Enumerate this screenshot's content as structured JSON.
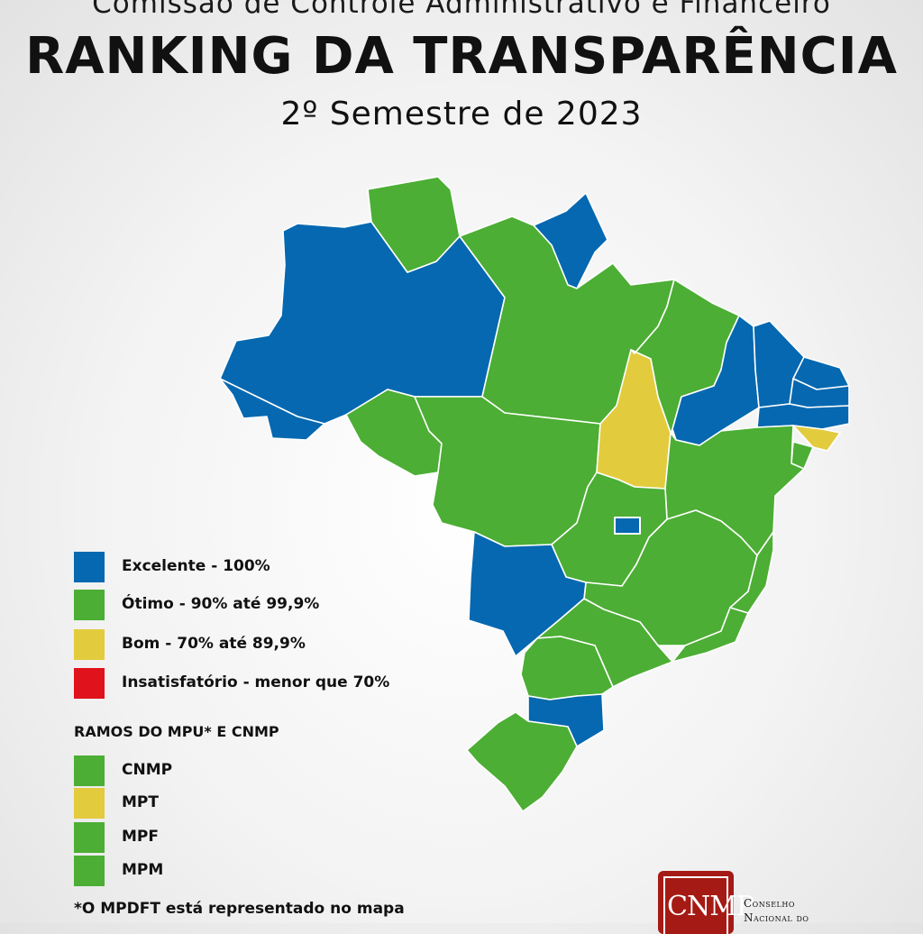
{
  "header": {
    "subtitle": "Comissão de Controle Administrativo e Financeiro",
    "title": "RANKING  DA TRANSPARÊNCIA",
    "semester": "2º Semestre de 2023"
  },
  "colors": {
    "excelente": "#0568b0",
    "otimo": "#4cae34",
    "bom": "#e3cb3e",
    "insatisfatorio": "#e0121b"
  },
  "map": {
    "states": [
      {
        "abbr": "AM",
        "category": "excelente"
      },
      {
        "abbr": "AC",
        "category": "excelente"
      },
      {
        "abbr": "RR",
        "category": "otimo"
      },
      {
        "abbr": "AP",
        "category": "excelente"
      },
      {
        "abbr": "PA",
        "category": "otimo"
      },
      {
        "abbr": "RO",
        "category": "otimo"
      },
      {
        "abbr": "MT",
        "category": "otimo"
      },
      {
        "abbr": "TO",
        "category": "bom"
      },
      {
        "abbr": "MA",
        "category": "otimo"
      },
      {
        "abbr": "PI",
        "category": "excelente"
      },
      {
        "abbr": "CE",
        "category": "excelente"
      },
      {
        "abbr": "RN",
        "category": "excelente"
      },
      {
        "abbr": "PB",
        "category": "excelente"
      },
      {
        "abbr": "PE",
        "category": "excelente"
      },
      {
        "abbr": "AL",
        "category": "bom"
      },
      {
        "abbr": "SE",
        "category": "otimo"
      },
      {
        "abbr": "BA",
        "category": "otimo"
      },
      {
        "abbr": "GO",
        "category": "otimo"
      },
      {
        "abbr": "DF",
        "category": "excelente"
      },
      {
        "abbr": "MG",
        "category": "otimo"
      },
      {
        "abbr": "ES",
        "category": "otimo"
      },
      {
        "abbr": "RJ",
        "category": "otimo"
      },
      {
        "abbr": "MS",
        "category": "excelente"
      },
      {
        "abbr": "SP",
        "category": "otimo"
      },
      {
        "abbr": "PR",
        "category": "otimo"
      },
      {
        "abbr": "SC",
        "category": "excelente"
      },
      {
        "abbr": "RS",
        "category": "otimo"
      }
    ]
  },
  "legend": {
    "items": [
      {
        "label": "Excelente - 100%",
        "category": "excelente"
      },
      {
        "label": "Ótimo - 90% até 99,9%",
        "category": "otimo"
      },
      {
        "label": "Bom - 70% até 89,9%",
        "category": "bom"
      },
      {
        "label": "Insatisfatório - menor que 70%",
        "category": "insatisfatorio"
      }
    ]
  },
  "ramos": {
    "heading": "RAMOS DO MPU* E CNMP",
    "items": [
      {
        "label": "CNMP",
        "category": "otimo"
      },
      {
        "label": "MPT",
        "category": "bom"
      },
      {
        "label": "MPF",
        "category": "otimo"
      },
      {
        "label": "MPM",
        "category": "otimo"
      }
    ]
  },
  "footnote": "*O MPDFT está representado no mapa",
  "logo": {
    "initials": "CNMP",
    "caption_line1": "Conselho",
    "caption_line2": "Nacional do"
  }
}
